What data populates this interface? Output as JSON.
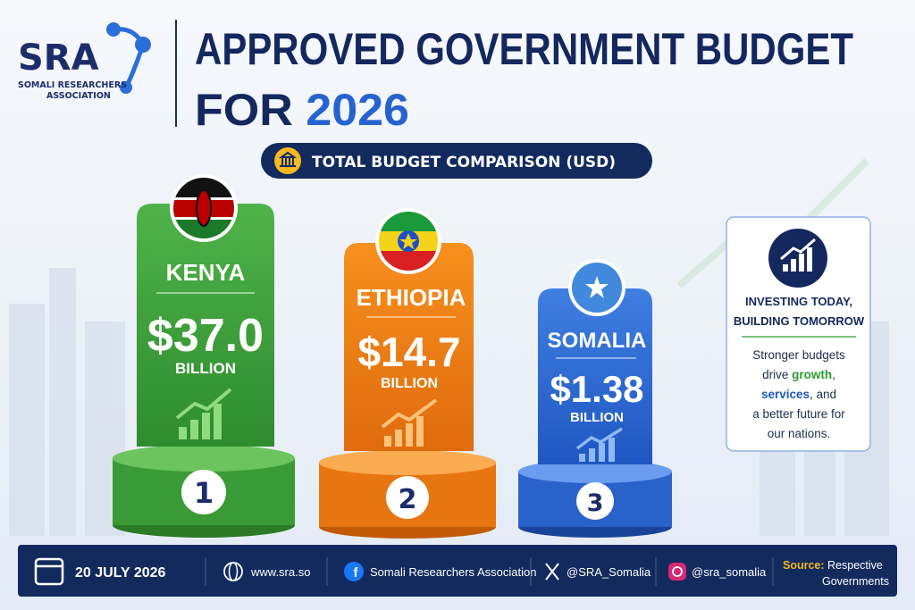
{
  "logo": {
    "abbr": "SRA",
    "name_lines": [
      "SOMALI RESEARCHERS",
      "ASSOCIATION"
    ]
  },
  "header": {
    "title_line1": "APPROVED GOVERNMENT BUDGET",
    "title_line2": "FOR",
    "title_year": "2026"
  },
  "badge": "TOTAL BUDGET COMPARISON (USD)",
  "podiums": [
    {
      "country": "KENYA",
      "amount": "$37.0",
      "unit": "BILLION",
      "rank": "1"
    },
    {
      "country": "ETHIOPIA",
      "amount": "$14.7",
      "unit": "BILLION",
      "rank": "2"
    },
    {
      "country": "SOMALIA",
      "amount": "$1.38",
      "unit": "BILLION",
      "rank": "3"
    }
  ],
  "side_card": {
    "title_lines": [
      "INVESTING TODAY,",
      "BUILDING TOMORROW"
    ],
    "body": {
      "line1": "Stronger budgets",
      "line2_pre": "drive ",
      "line2_hl": "growth",
      "line2_post": ",",
      "line3_hl": "services",
      "line3_post": ", and",
      "line4": "a better future for",
      "line5": "our nations."
    }
  },
  "footer": {
    "date": "20 JULY 2026",
    "website": "www.sra.so",
    "facebook": "Somali Researchers Association",
    "x": "@SRA_Somalia",
    "instagram": "@sra_somalia",
    "source_label": "Source:",
    "source_lines": [
      "Respective",
      "Governments"
    ]
  }
}
